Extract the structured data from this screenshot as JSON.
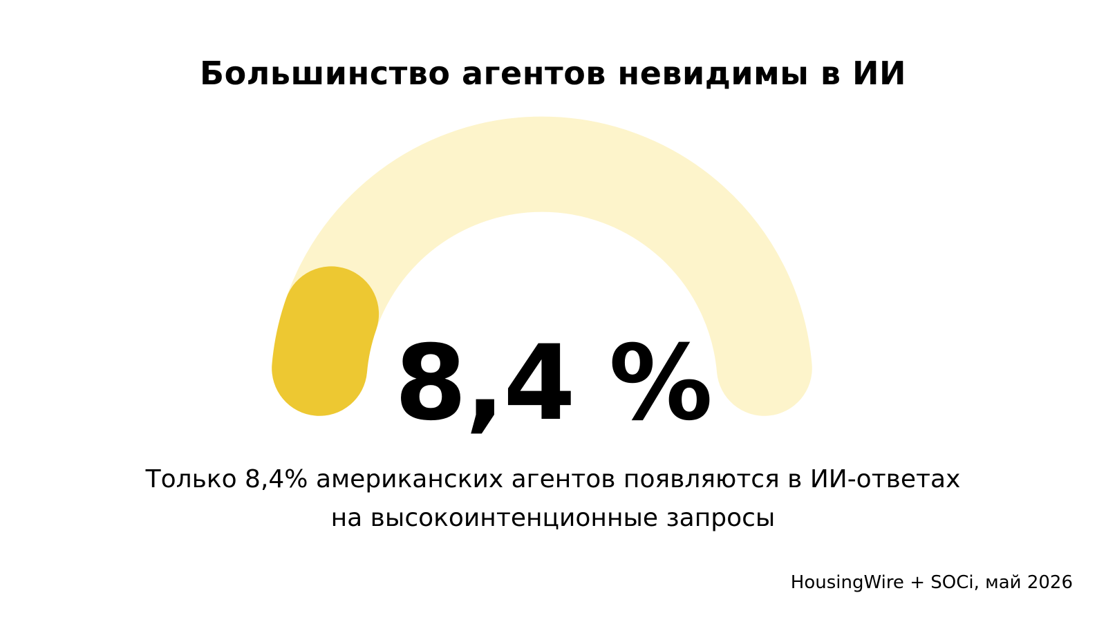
{
  "chart_data": {
    "type": "gauge",
    "title": "Большинство агентов невидимы в ИИ",
    "value": 8.4,
    "max": 100,
    "value_label": "8,4 %",
    "caption_lines": [
      "Только 8,4% американских агентов появляются в ИИ-ответах",
      "на высокоинтенционные запросы"
    ],
    "source": "HousingWire + SOCi, май 2026",
    "colors": {
      "track": "#fdf4cb",
      "fill": "#edc832",
      "text": "#000000",
      "background": "#ffffff"
    }
  }
}
